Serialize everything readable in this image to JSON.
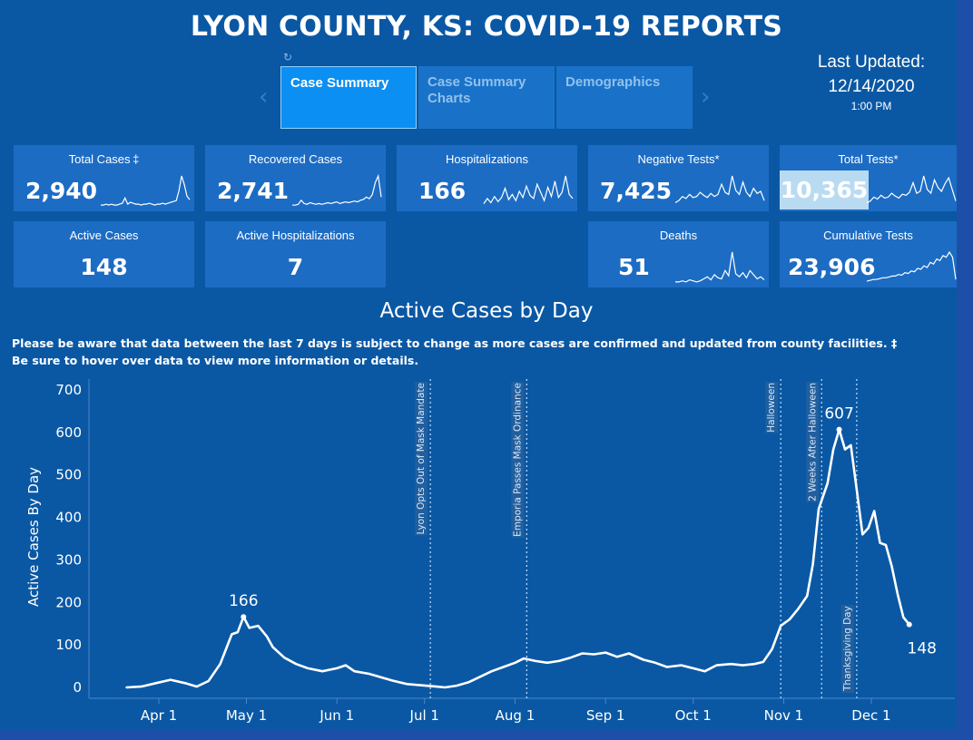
{
  "header": {
    "title": "LYON COUNTY, KS:  COVID-19 REPORTS"
  },
  "tabs": [
    {
      "label": "Case Summary",
      "active": true
    },
    {
      "label": "Case Summary Charts",
      "active": false
    },
    {
      "label": "Demographics",
      "active": false
    }
  ],
  "last_updated": {
    "label": "Last Updated:",
    "date": "12/14/2020",
    "time": "1:00 PM"
  },
  "cards": {
    "total_cases": {
      "label": "Total Cases ‡",
      "value": "2,940",
      "spark": [
        2,
        2,
        3,
        2,
        3,
        2,
        2,
        3,
        4,
        10,
        3,
        5,
        4,
        3,
        3,
        2,
        3,
        3,
        4,
        3,
        2,
        3,
        3,
        4,
        3,
        4,
        5,
        6,
        7,
        18,
        35,
        25,
        12,
        8
      ]
    },
    "recovered_cases": {
      "label": "Recovered Cases",
      "value": "2,741",
      "spark": [
        2,
        2,
        3,
        8,
        4,
        3,
        5,
        4,
        3,
        4,
        3,
        4,
        5,
        4,
        5,
        6,
        4,
        5,
        6,
        5,
        6,
        7,
        6,
        8,
        9,
        12,
        10,
        15,
        30,
        38,
        12
      ]
    },
    "hospitalizations": {
      "label": "Hospitalizations",
      "value": "166",
      "spark": [
        3,
        8,
        4,
        10,
        5,
        9,
        18,
        7,
        12,
        6,
        15,
        9,
        20,
        11,
        8,
        22,
        14,
        6,
        19,
        10,
        25,
        9,
        14,
        30,
        12,
        8
      ]
    },
    "negative_tests": {
      "label": "Negative Tests*",
      "value": "7,425",
      "spark": [
        4,
        6,
        10,
        8,
        12,
        9,
        10,
        14,
        11,
        9,
        13,
        10,
        12,
        22,
        14,
        12,
        30,
        16,
        12,
        24,
        14,
        10,
        18,
        13,
        15,
        6
      ]
    },
    "total_tests": {
      "label": "Total Tests*",
      "value": "10,365",
      "spark": [
        4,
        6,
        10,
        8,
        12,
        9,
        10,
        14,
        11,
        9,
        13,
        12,
        15,
        25,
        14,
        16,
        32,
        18,
        14,
        28,
        20,
        16,
        24,
        30,
        18,
        6
      ]
    },
    "active_cases": {
      "label": "Active Cases",
      "value": "148"
    },
    "active_hospitalizations": {
      "label": "Active Hospitalizations",
      "value": "7"
    },
    "deaths": {
      "label": "Deaths",
      "value": "51",
      "spark": [
        1,
        1,
        2,
        1,
        3,
        2,
        1,
        2,
        4,
        6,
        3,
        8,
        5,
        4,
        12,
        7,
        30,
        9,
        6,
        10,
        5,
        12,
        8,
        4,
        6,
        3
      ]
    },
    "cumulative_tests": {
      "label": "Cumulative Tests",
      "value": "23,906",
      "spark": [
        2,
        3,
        4,
        4,
        5,
        6,
        6,
        7,
        8,
        8,
        10,
        9,
        12,
        11,
        14,
        13,
        17,
        16,
        20,
        18,
        24,
        22,
        28,
        26,
        32,
        30,
        36,
        30,
        4
      ]
    }
  },
  "section": {
    "title": "Active Cases by Day",
    "notice_1": "Please be aware that data between the last 7 days is subject to change as more cases are confirmed and updated from county facilities. ‡",
    "notice_2": "Be sure to hover over data to view more information or details."
  },
  "chart_data": {
    "type": "line",
    "title": "Active Cases by Day",
    "ylabel": "Active Cases By Day",
    "xlabel": "",
    "ylim": [
      0,
      700
    ],
    "yticks": [
      "700",
      "600",
      "500",
      "400",
      "300",
      "200",
      "100",
      "0"
    ],
    "xticks": [
      "Apr 1",
      "May 1",
      "Jun 1",
      "Jul 1",
      "Aug 1",
      "Sep 1",
      "Oct 1",
      "Nov 1",
      "Dec 1"
    ],
    "grid": false,
    "series": [
      {
        "points": [
          [
            "2020-03-21",
            0
          ],
          [
            "2020-03-26",
            2
          ],
          [
            "2020-03-31",
            10
          ],
          [
            "2020-04-05",
            18
          ],
          [
            "2020-04-10",
            10
          ],
          [
            "2020-04-14",
            2
          ],
          [
            "2020-04-18",
            15
          ],
          [
            "2020-04-22",
            55
          ],
          [
            "2020-04-26",
            125
          ],
          [
            "2020-04-28",
            130
          ],
          [
            "2020-04-30",
            166
          ],
          [
            "2020-05-02",
            140
          ],
          [
            "2020-05-05",
            145
          ],
          [
            "2020-05-08",
            120
          ],
          [
            "2020-05-10",
            95
          ],
          [
            "2020-05-14",
            70
          ],
          [
            "2020-05-18",
            55
          ],
          [
            "2020-05-22",
            45
          ],
          [
            "2020-05-27",
            38
          ],
          [
            "2020-06-01",
            45
          ],
          [
            "2020-06-04",
            52
          ],
          [
            "2020-06-07",
            38
          ],
          [
            "2020-06-12",
            32
          ],
          [
            "2020-06-16",
            24
          ],
          [
            "2020-06-20",
            16
          ],
          [
            "2020-06-25",
            8
          ],
          [
            "2020-06-30",
            5
          ],
          [
            "2020-07-05",
            2
          ],
          [
            "2020-07-08",
            0
          ],
          [
            "2020-07-12",
            4
          ],
          [
            "2020-07-16",
            12
          ],
          [
            "2020-07-20",
            25
          ],
          [
            "2020-07-24",
            38
          ],
          [
            "2020-07-28",
            48
          ],
          [
            "2020-08-01",
            58
          ],
          [
            "2020-08-04",
            68
          ],
          [
            "2020-08-08",
            62
          ],
          [
            "2020-08-12",
            58
          ],
          [
            "2020-08-16",
            62
          ],
          [
            "2020-08-20",
            70
          ],
          [
            "2020-08-24",
            80
          ],
          [
            "2020-08-28",
            78
          ],
          [
            "2020-09-01",
            82
          ],
          [
            "2020-09-05",
            72
          ],
          [
            "2020-09-09",
            80
          ],
          [
            "2020-09-14",
            65
          ],
          [
            "2020-09-18",
            58
          ],
          [
            "2020-09-22",
            48
          ],
          [
            "2020-09-27",
            52
          ],
          [
            "2020-10-01",
            45
          ],
          [
            "2020-10-05",
            38
          ],
          [
            "2020-10-09",
            52
          ],
          [
            "2020-10-14",
            55
          ],
          [
            "2020-10-18",
            52
          ],
          [
            "2020-10-22",
            55
          ],
          [
            "2020-10-25",
            60
          ],
          [
            "2020-10-28",
            90
          ],
          [
            "2020-10-31",
            145
          ],
          [
            "2020-11-03",
            160
          ],
          [
            "2020-11-06",
            185
          ],
          [
            "2020-11-09",
            215
          ],
          [
            "2020-11-11",
            290
          ],
          [
            "2020-11-13",
            420
          ],
          [
            "2020-11-16",
            480
          ],
          [
            "2020-11-18",
            560
          ],
          [
            "2020-11-20",
            607
          ],
          [
            "2020-11-22",
            560
          ],
          [
            "2020-11-24",
            570
          ],
          [
            "2020-11-26",
            465
          ],
          [
            "2020-11-28",
            360
          ],
          [
            "2020-11-30",
            375
          ],
          [
            "2020-12-02",
            415
          ],
          [
            "2020-12-04",
            340
          ],
          [
            "2020-12-06",
            335
          ],
          [
            "2020-12-08",
            285
          ],
          [
            "2020-12-10",
            220
          ],
          [
            "2020-12-12",
            165
          ],
          [
            "2020-12-14",
            148
          ]
        ]
      }
    ],
    "reference_lines": [
      {
        "date": "2020-07-03",
        "label": "Lyon Opts Out of Mask Mandate"
      },
      {
        "date": "2020-08-05",
        "label": "Emporia Passes Mask Ordinance"
      },
      {
        "date": "2020-10-31",
        "label": "Halloween"
      },
      {
        "date": "2020-11-14",
        "label": "2 Weeks After Halloween"
      },
      {
        "date": "2020-11-26",
        "label": "Thanksgiving Day"
      }
    ],
    "annotations": [
      {
        "date": "2020-04-30",
        "value": 166,
        "text": "166"
      },
      {
        "date": "2020-11-20",
        "value": 607,
        "text": "607"
      },
      {
        "date": "2020-12-14",
        "value": 148,
        "text": "148"
      }
    ]
  },
  "colors": {
    "background": "#0a58a4",
    "card": "#1c6cc4",
    "active_tab": "#0c8ff2",
    "line": "#ffffff"
  }
}
